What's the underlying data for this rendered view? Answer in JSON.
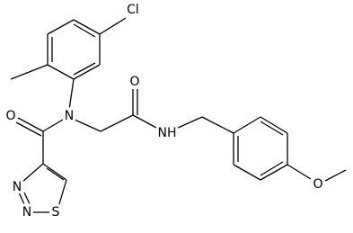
{
  "atoms": [
    {
      "label": "Cl"
    },
    {
      "label": "O"
    },
    {
      "label": "N"
    },
    {
      "label": "O"
    },
    {
      "label": "NH"
    },
    {
      "label": "O"
    },
    {
      "label": "N"
    },
    {
      "label": "N"
    },
    {
      "label": "S"
    }
  ]
}
